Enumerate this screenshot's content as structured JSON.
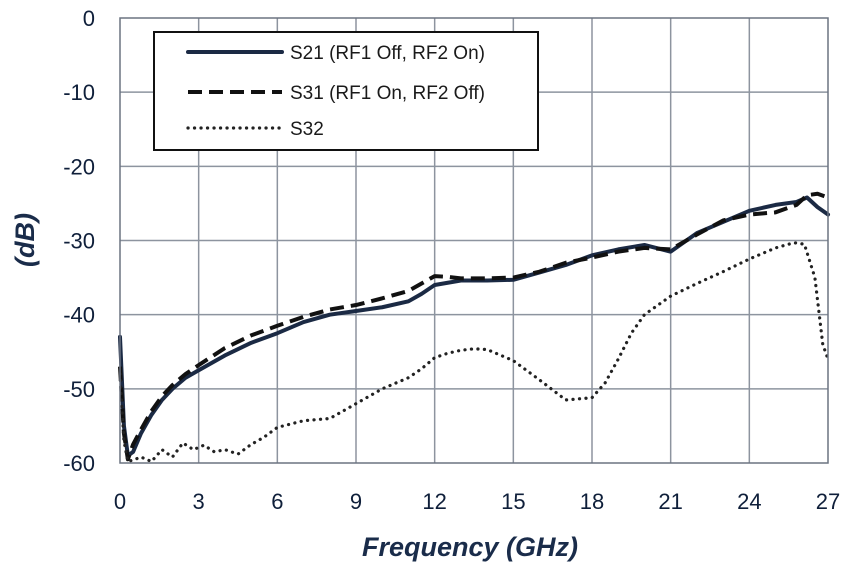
{
  "chart_data": {
    "type": "line",
    "xlabel": "Frequency (GHz)",
    "ylabel": "(dB)",
    "xlim": [
      0,
      27
    ],
    "ylim": [
      -60,
      0
    ],
    "xticks": [
      0,
      3,
      6,
      9,
      12,
      15,
      18,
      21,
      24,
      27
    ],
    "yticks": [
      0,
      -10,
      -20,
      -30,
      -40,
      -50,
      -60
    ],
    "xtick_labels": [
      "0",
      "3",
      "6",
      "9",
      "12",
      "15",
      "18",
      "21",
      "24",
      "27"
    ],
    "ytick_labels": [
      "0",
      "-10",
      "-20",
      "-30",
      "-40",
      "-50",
      "-60"
    ],
    "grid": true,
    "legend_position": "top-left",
    "series": [
      {
        "name": "S21 (RF1 Off, RF2 On)",
        "color": "#1b2a44",
        "style": "solid",
        "x": [
          0,
          0.15,
          0.3,
          0.5,
          0.8,
          1.2,
          1.6,
          2.0,
          2.5,
          3.0,
          4.0,
          5.0,
          6.0,
          7.0,
          8.0,
          9.0,
          10.0,
          11.0,
          11.5,
          12.0,
          12.5,
          13.0,
          14.0,
          15.0,
          16.0,
          17.0,
          18.0,
          19.0,
          20.0,
          21.0,
          22.0,
          23.0,
          24.0,
          25.0,
          25.8,
          26.2,
          26.6,
          27.0
        ],
        "y": [
          -43,
          -55,
          -59,
          -58.5,
          -56,
          -53.5,
          -51.5,
          -50,
          -48.5,
          -47.5,
          -45.5,
          -43.8,
          -42.5,
          -41,
          -40,
          -39.5,
          -39,
          -38.2,
          -37.2,
          -36,
          -35.7,
          -35.4,
          -35.4,
          -35.3,
          -34.3,
          -33.3,
          -32,
          -31.2,
          -30.6,
          -31.5,
          -29,
          -27.5,
          -26,
          -25.2,
          -24.8,
          -24.2,
          -25.5,
          -26.5
        ]
      },
      {
        "name": "S31 (RF1 On, RF2 Off)",
        "color": "#111111",
        "style": "dashed",
        "x": [
          0,
          0.15,
          0.3,
          0.5,
          0.8,
          1.2,
          1.6,
          2.0,
          2.5,
          3.0,
          4.0,
          5.0,
          6.0,
          7.0,
          8.0,
          9.0,
          10.0,
          11.0,
          11.5,
          12.0,
          12.5,
          13.0,
          14.0,
          15.0,
          16.0,
          17.0,
          18.0,
          19.0,
          20.0,
          21.0,
          22.0,
          23.0,
          24.0,
          25.0,
          25.8,
          26.2,
          26.6,
          27.0
        ],
        "y": [
          -47,
          -56,
          -59.5,
          -57.5,
          -55.5,
          -53,
          -51,
          -49.5,
          -48,
          -46.8,
          -44.5,
          -42.8,
          -41.5,
          -40.3,
          -39.3,
          -38.7,
          -37.8,
          -36.8,
          -35.8,
          -34.8,
          -34.9,
          -35.1,
          -35.1,
          -35.0,
          -34.2,
          -33.0,
          -32.3,
          -31.5,
          -31.0,
          -31.2,
          -29.2,
          -27.3,
          -26.5,
          -26.2,
          -25.2,
          -23.9,
          -23.7,
          -24.2
        ]
      },
      {
        "name": "S32",
        "color": "#222222",
        "style": "dotted",
        "x": [
          0,
          0.15,
          0.3,
          0.5,
          0.8,
          1.2,
          1.6,
          2.0,
          2.4,
          2.8,
          3.2,
          3.6,
          4.0,
          4.5,
          5.0,
          5.5,
          6.0,
          7.0,
          8.0,
          9.0,
          10.0,
          11.0,
          11.5,
          12.0,
          12.5,
          13.0,
          13.5,
          14.0,
          15.0,
          16.0,
          17.0,
          18.0,
          18.5,
          19.0,
          19.5,
          20.0,
          21.0,
          22.0,
          23.0,
          24.0,
          25.0,
          25.7,
          26.1,
          26.5,
          26.8,
          27.0
        ],
        "y": [
          -48,
          -57,
          -59.8,
          -59.6,
          -59.2,
          -59.8,
          -58.2,
          -59.2,
          -57.3,
          -58.2,
          -57.6,
          -58.5,
          -58.2,
          -58.8,
          -57.5,
          -56.5,
          -55.2,
          -54.3,
          -54,
          -52,
          -50,
          -48.5,
          -47.3,
          -45.8,
          -45.2,
          -44.8,
          -44.6,
          -44.7,
          -46.2,
          -48.8,
          -51.5,
          -51.2,
          -49.2,
          -46,
          -42.5,
          -40,
          -37.5,
          -35.8,
          -34.2,
          -32.5,
          -31,
          -30.3,
          -30.5,
          -35,
          -44,
          -46
        ]
      }
    ]
  }
}
